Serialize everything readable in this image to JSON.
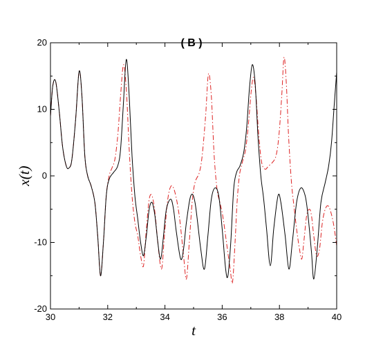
{
  "chart_data": {
    "type": "line",
    "title": "( B )",
    "xlabel": "t",
    "ylabel": "x(t)",
    "xlim": [
      30,
      40
    ],
    "ylim": [
      -20,
      20
    ],
    "xticks": [
      30,
      32,
      34,
      36,
      38,
      40
    ],
    "yticks": [
      -20,
      -10,
      0,
      10,
      20
    ],
    "grid": false,
    "legend": "none",
    "series": [
      {
        "color": "#000000",
        "style": "solid",
        "points": [
          [
            30.0,
            9.0
          ],
          [
            30.08,
            13.5
          ],
          [
            30.18,
            14.2
          ],
          [
            30.3,
            10.0
          ],
          [
            30.42,
            4.5
          ],
          [
            30.55,
            1.5
          ],
          [
            30.65,
            1.2
          ],
          [
            30.75,
            2.5
          ],
          [
            30.88,
            8.5
          ],
          [
            31.0,
            15.7
          ],
          [
            31.1,
            12.0
          ],
          [
            31.2,
            3.0
          ],
          [
            31.3,
            0.0
          ],
          [
            31.42,
            -1.5
          ],
          [
            31.55,
            -4.0
          ],
          [
            31.65,
            -9.0
          ],
          [
            31.75,
            -15.0
          ],
          [
            31.85,
            -10.0
          ],
          [
            31.95,
            -3.0
          ],
          [
            32.05,
            -0.5
          ],
          [
            32.2,
            0.5
          ],
          [
            32.35,
            1.5
          ],
          [
            32.45,
            4.0
          ],
          [
            32.55,
            11.0
          ],
          [
            32.65,
            17.5
          ],
          [
            32.75,
            12.0
          ],
          [
            32.85,
            3.0
          ],
          [
            32.95,
            -3.0
          ],
          [
            33.05,
            -6.5
          ],
          [
            33.15,
            -10.0
          ],
          [
            33.25,
            -12.0
          ],
          [
            33.35,
            -9.0
          ],
          [
            33.45,
            -5.0
          ],
          [
            33.55,
            -4.0
          ],
          [
            33.65,
            -6.0
          ],
          [
            33.75,
            -10.0
          ],
          [
            33.85,
            -12.5
          ],
          [
            33.95,
            -9.0
          ],
          [
            34.05,
            -5.0
          ],
          [
            34.2,
            -3.5
          ],
          [
            34.3,
            -5.0
          ],
          [
            34.4,
            -8.5
          ],
          [
            34.55,
            -12.5
          ],
          [
            34.65,
            -11.0
          ],
          [
            34.75,
            -7.0
          ],
          [
            34.9,
            -3.0
          ],
          [
            35.05,
            -4.0
          ],
          [
            35.25,
            -11.0
          ],
          [
            35.38,
            -14.0
          ],
          [
            35.5,
            -9.0
          ],
          [
            35.62,
            -3.5
          ],
          [
            35.75,
            -1.8
          ],
          [
            35.88,
            -3.0
          ],
          [
            36.0,
            -8.0
          ],
          [
            36.12,
            -14.0
          ],
          [
            36.2,
            -15.0
          ],
          [
            36.3,
            -10.0
          ],
          [
            36.4,
            -2.0
          ],
          [
            36.5,
            0.5
          ],
          [
            36.62,
            1.5
          ],
          [
            36.75,
            3.5
          ],
          [
            36.85,
            7.0
          ],
          [
            36.95,
            13.0
          ],
          [
            37.05,
            16.7
          ],
          [
            37.15,
            14.0
          ],
          [
            37.25,
            6.0
          ],
          [
            37.35,
            0.0
          ],
          [
            37.45,
            -3.5
          ],
          [
            37.55,
            -8.0
          ],
          [
            37.68,
            -13.5
          ],
          [
            37.8,
            -8.0
          ],
          [
            37.95,
            -3.0
          ],
          [
            38.05,
            -4.0
          ],
          [
            38.2,
            -9.0
          ],
          [
            38.33,
            -14.0
          ],
          [
            38.45,
            -10.0
          ],
          [
            38.6,
            -4.0
          ],
          [
            38.75,
            -1.8
          ],
          [
            38.9,
            -3.0
          ],
          [
            39.0,
            -6.0
          ],
          [
            39.12,
            -11.5
          ],
          [
            39.2,
            -15.5
          ],
          [
            39.32,
            -11.0
          ],
          [
            39.45,
            -4.0
          ],
          [
            39.6,
            -1.0
          ],
          [
            39.72,
            1.5
          ],
          [
            39.82,
            5.0
          ],
          [
            39.92,
            11.0
          ],
          [
            40.0,
            15.6
          ]
        ]
      },
      {
        "color": "#dd2222",
        "style": "dashdot",
        "points": [
          [
            30.0,
            9.0
          ],
          [
            30.08,
            13.5
          ],
          [
            30.18,
            14.2
          ],
          [
            30.3,
            10.0
          ],
          [
            30.42,
            4.5
          ],
          [
            30.55,
            1.5
          ],
          [
            30.65,
            1.2
          ],
          [
            30.75,
            2.5
          ],
          [
            30.88,
            8.5
          ],
          [
            31.0,
            15.7
          ],
          [
            31.1,
            12.0
          ],
          [
            31.2,
            3.0
          ],
          [
            31.3,
            0.0
          ],
          [
            31.42,
            -1.5
          ],
          [
            31.55,
            -4.0
          ],
          [
            31.65,
            -9.0
          ],
          [
            31.75,
            -15.0
          ],
          [
            31.85,
            -10.0
          ],
          [
            31.95,
            -3.0
          ],
          [
            32.05,
            0.0
          ],
          [
            32.15,
            1.2
          ],
          [
            32.25,
            2.5
          ],
          [
            32.35,
            6.0
          ],
          [
            32.45,
            12.0
          ],
          [
            32.55,
            16.7
          ],
          [
            32.65,
            13.0
          ],
          [
            32.75,
            4.0
          ],
          [
            32.85,
            -3.0
          ],
          [
            32.95,
            -7.0
          ],
          [
            33.05,
            -9.0
          ],
          [
            33.15,
            -12.0
          ],
          [
            33.25,
            -13.5
          ],
          [
            33.35,
            -8.0
          ],
          [
            33.45,
            -3.5
          ],
          [
            33.55,
            -3.0
          ],
          [
            33.65,
            -5.5
          ],
          [
            33.75,
            -10.0
          ],
          [
            33.88,
            -14.0
          ],
          [
            33.98,
            -9.0
          ],
          [
            34.1,
            -3.5
          ],
          [
            34.22,
            -1.5
          ],
          [
            34.35,
            -2.5
          ],
          [
            34.5,
            -6.0
          ],
          [
            34.65,
            -12.0
          ],
          [
            34.75,
            -15.5
          ],
          [
            34.85,
            -10.0
          ],
          [
            34.95,
            -4.0
          ],
          [
            35.05,
            -1.0
          ],
          [
            35.2,
            0.5
          ],
          [
            35.3,
            3.0
          ],
          [
            35.42,
            9.0
          ],
          [
            35.52,
            15.3
          ],
          [
            35.62,
            12.0
          ],
          [
            35.72,
            3.0
          ],
          [
            35.82,
            -2.0
          ],
          [
            35.92,
            -4.0
          ],
          [
            36.02,
            -6.0
          ],
          [
            36.15,
            -10.0
          ],
          [
            36.28,
            -14.0
          ],
          [
            36.36,
            -16.0
          ],
          [
            36.45,
            -10.0
          ],
          [
            36.52,
            -4.0
          ],
          [
            36.6,
            0.0
          ],
          [
            36.7,
            2.0
          ],
          [
            36.82,
            4.0
          ],
          [
            36.92,
            8.0
          ],
          [
            37.02,
            13.0
          ],
          [
            37.1,
            14.8
          ],
          [
            37.18,
            12.0
          ],
          [
            37.28,
            6.0
          ],
          [
            37.38,
            2.0
          ],
          [
            37.5,
            1.0
          ],
          [
            37.62,
            1.5
          ],
          [
            37.75,
            2.0
          ],
          [
            37.88,
            3.0
          ],
          [
            37.98,
            6.0
          ],
          [
            38.08,
            12.0
          ],
          [
            38.16,
            17.8
          ],
          [
            38.24,
            14.0
          ],
          [
            38.32,
            6.0
          ],
          [
            38.42,
            -1.0
          ],
          [
            38.52,
            -5.0
          ],
          [
            38.6,
            -8.0
          ],
          [
            38.7,
            -11.0
          ],
          [
            38.78,
            -12.5
          ],
          [
            38.85,
            -10.0
          ],
          [
            38.95,
            -6.0
          ],
          [
            39.05,
            -5.0
          ],
          [
            39.12,
            -6.0
          ],
          [
            39.2,
            -9.0
          ],
          [
            39.3,
            -12.0
          ],
          [
            39.4,
            -11.0
          ],
          [
            39.5,
            -7.0
          ],
          [
            39.6,
            -5.0
          ],
          [
            39.7,
            -4.5
          ],
          [
            39.8,
            -5.5
          ],
          [
            39.9,
            -7.5
          ],
          [
            40.0,
            -10.5
          ]
        ]
      }
    ]
  }
}
